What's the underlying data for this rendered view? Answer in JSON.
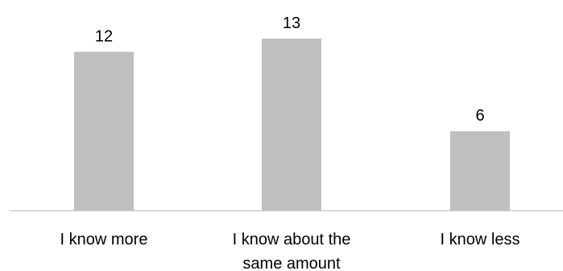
{
  "chart_data": {
    "type": "bar",
    "categories": [
      [
        "I know more"
      ],
      [
        "I know about the",
        "same amount"
      ],
      [
        "I know less"
      ]
    ],
    "values": [
      12,
      13,
      6
    ],
    "data_labels": [
      "12",
      "13",
      "6"
    ],
    "title": "",
    "xlabel": "",
    "ylabel": "",
    "ylim": [
      0,
      13
    ],
    "grid": false,
    "legend": "none",
    "colors": {
      "bar": "#bfbfbf",
      "axis": "#d9d9d9",
      "text": "#000000"
    }
  }
}
